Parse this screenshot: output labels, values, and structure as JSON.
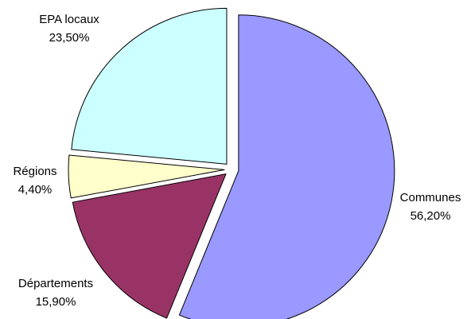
{
  "chart_data": {
    "type": "pie",
    "title": "",
    "slices": [
      {
        "label": "Communes",
        "value_text": "56,20%",
        "value": 56.2,
        "color": "#9999ff"
      },
      {
        "label": "Départements",
        "value_text": "15,90%",
        "value": 15.9,
        "color": "#993366"
      },
      {
        "label": "Régions",
        "value_text": "4,40%",
        "value": 4.4,
        "color": "#ffffcc"
      },
      {
        "label": "EPA locaux",
        "value_text": "23,50%",
        "value": 23.5,
        "color": "#ccffff"
      }
    ],
    "legend": "none",
    "data_labels": "category name and percentage, outside slices"
  }
}
